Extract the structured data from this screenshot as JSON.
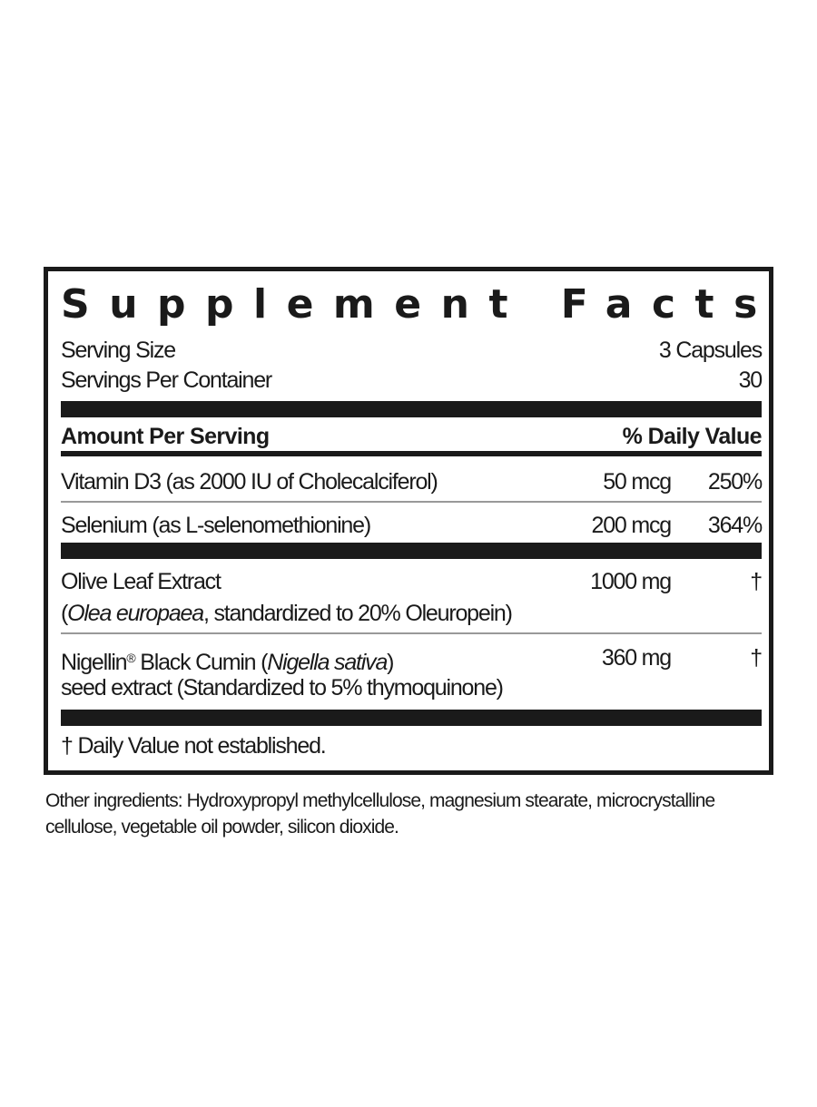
{
  "label": {
    "title": "Supplement Facts",
    "serving_size_label": "Serving Size",
    "serving_size_value": "3 Capsules",
    "servings_per_container_label": "Servings Per Container",
    "servings_per_container_value": "30",
    "amount_header": "Amount Per Serving",
    "dv_header": "% Daily Value",
    "rows": [
      {
        "name": "Vitamin D3 (as 2000 IU of Cholecalciferol)",
        "amount": "50 mcg",
        "dv": "250%"
      },
      {
        "name": "Selenium (as L-selenomethionine)",
        "amount": "200 mcg",
        "dv": "364%"
      },
      {
        "name": "Olive Leaf Extract",
        "sub_open": "(",
        "sub_italic": "Olea europaea",
        "sub_rest": ", standardized to 20% Oleuropein)",
        "amount": "1000 mg",
        "dv": "†"
      },
      {
        "name": "Nigellin",
        "reg": "®",
        "name_rest": " Black Cumin (",
        "name_italic": "Nigella sativa",
        "name_close": ")",
        "sub": "seed extract (Standardized to 5% thymoquinone)",
        "amount": "360 mg",
        "dv": "†"
      }
    ],
    "footnote": "† Daily Value not established."
  },
  "other_ingredients": "Other ingredients: Hydroxypropyl methylcellulose, magnesium stearate, microcrystalline cellulose, vegetable oil powder, silicon dioxide."
}
